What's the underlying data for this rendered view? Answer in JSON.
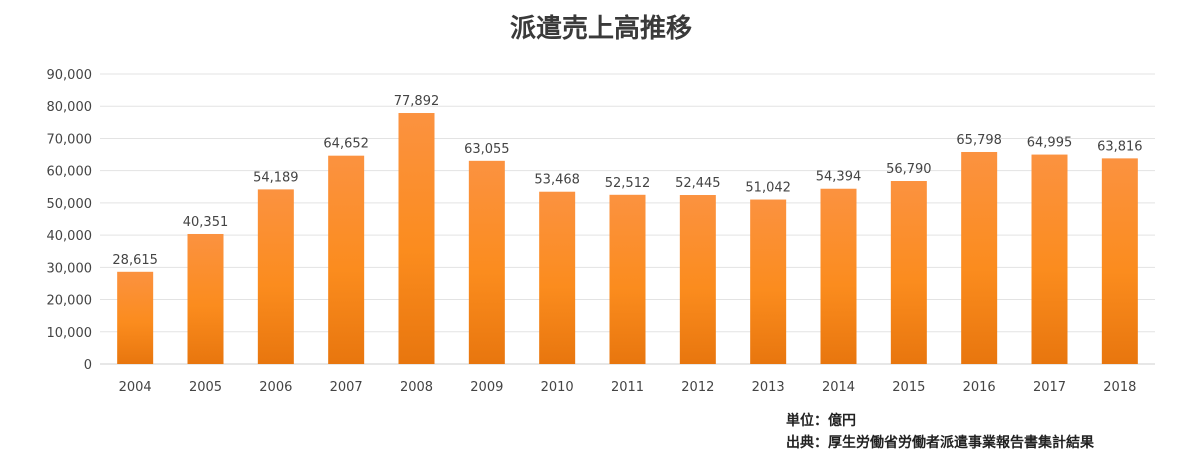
{
  "chart_data": {
    "type": "bar",
    "title": "派遣売上高推移",
    "categories": [
      "2004",
      "2005",
      "2006",
      "2007",
      "2008",
      "2009",
      "2010",
      "2011",
      "2012",
      "2013",
      "2014",
      "2015",
      "2016",
      "2017",
      "2018"
    ],
    "values": [
      28615,
      40351,
      54189,
      64652,
      77892,
      63055,
      53468,
      52512,
      52445,
      51042,
      54394,
      56790,
      65798,
      64995,
      63816
    ],
    "value_labels": [
      "28,615",
      "40,351",
      "54,189",
      "64,652",
      "77,892",
      "63,055",
      "53,468",
      "52,512",
      "52,445",
      "51,042",
      "54,394",
      "56,790",
      "65,798",
      "64,995",
      "63,816"
    ],
    "y_ticks": [
      0,
      10000,
      20000,
      30000,
      40000,
      50000,
      60000,
      70000,
      80000,
      90000
    ],
    "y_tick_labels": [
      "0",
      "10,000",
      "20,000",
      "30,000",
      "40,000",
      "50,000",
      "60,000",
      "70,000",
      "80,000",
      "90,000"
    ],
    "ylim": [
      0,
      90000
    ],
    "grid": true,
    "bar_color": "#fb8c1e"
  },
  "notes": {
    "unit": "単位：億円",
    "source": "出典：厚生労働省労働者派遣事業報告書集計結果"
  }
}
